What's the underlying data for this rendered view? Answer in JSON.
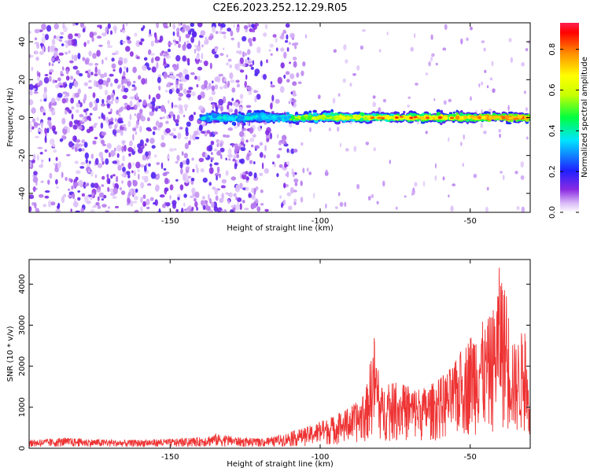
{
  "title": "C2E6.2023.252.12.29.R05",
  "chart_data": [
    {
      "type": "heatmap",
      "xlabel": "Height of straight line (km)",
      "ylabel": "Frequency (Hz)",
      "xlim": [
        -197,
        -30
      ],
      "ylim": [
        -50,
        50
      ],
      "xticks": [
        -150,
        -100,
        -50
      ],
      "xtick_labels": [
        "-150",
        "-100",
        "-50"
      ],
      "yticks": [
        -40,
        -20,
        0,
        20,
        40
      ],
      "ytick_labels": [
        "-40",
        "-20",
        "0",
        "20",
        "40"
      ],
      "colorbar": {
        "label": "Normalized spectral amplitude",
        "range": [
          0.0,
          0.93
        ],
        "ticks": [
          0.0,
          0.2,
          0.4,
          0.6,
          0.8
        ],
        "tick_labels": [
          "0.0",
          "0.2",
          "0.4",
          "0.6",
          "0.8"
        ],
        "colormap": "rainbow (white, purple, blue, cyan, green, yellow, orange, red)"
      },
      "grid": false,
      "regions": [
        {
          "x_range": [
            -197,
            -108
          ],
          "description": "broadband noise across all frequencies",
          "amplitude": 0.05
        },
        {
          "x_range": [
            -140,
            -30
          ],
          "description": "narrow band centered at 0 Hz",
          "amplitude_range": [
            0.3,
            0.93
          ]
        }
      ],
      "peak": {
        "x": -60,
        "y": 0,
        "amplitude": 0.9
      }
    },
    {
      "type": "line",
      "xlabel": "Height of straight line (km)",
      "ylabel": "SNR (10 * v/v)",
      "xlim": [
        -197,
        -30
      ],
      "ylim": [
        0,
        4600
      ],
      "xticks": [
        -150,
        -100,
        -50
      ],
      "xtick_labels": [
        "-150",
        "-100",
        "-50"
      ],
      "yticks": [
        0,
        1000,
        2000,
        3000,
        4000
      ],
      "ytick_labels": [
        "0",
        "1000",
        "2000",
        "3000",
        "4000"
      ],
      "series": [
        {
          "color": "#ee3333",
          "x": [
            -197,
            -190,
            -185,
            -180,
            -175,
            -170,
            -165,
            -160,
            -155,
            -150,
            -145,
            -140,
            -135,
            -130,
            -125,
            -120,
            -115,
            -110,
            -105,
            -100,
            -95,
            -90,
            -85,
            -82,
            -80,
            -75,
            -70,
            -65,
            -60,
            -55,
            -50,
            -47,
            -45,
            -42,
            -40,
            -37,
            -35,
            -32,
            -30
          ],
          "y": [
            200,
            230,
            250,
            240,
            220,
            210,
            200,
            210,
            220,
            230,
            240,
            270,
            350,
            300,
            250,
            230,
            280,
            400,
            500,
            650,
            800,
            1000,
            1300,
            2800,
            1500,
            1600,
            1500,
            1500,
            1700,
            2100,
            2800,
            3200,
            3000,
            3500,
            4600,
            3300,
            2500,
            3000,
            1200
          ]
        }
      ]
    }
  ]
}
